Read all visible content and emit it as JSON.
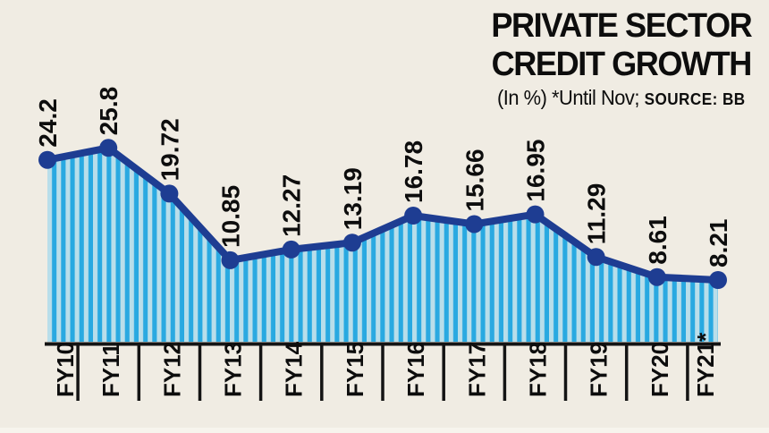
{
  "header": {
    "title_line1": "PRIVATE SECTOR",
    "title_line2": "CREDIT GROWTH",
    "subtitle_note": "(In %) *Until Nov;",
    "subtitle_source": "SOURCE: BB"
  },
  "colors": {
    "background": "#F0ECE3",
    "stripe_bright": "#29A9E1",
    "stripe_pale": "#B9DEEA",
    "line": "#1E3D92",
    "marker": "#1E3D92",
    "axis": "#141414",
    "text": "#0D0D0D",
    "bottom_edge_strip": "#F7F4ED"
  },
  "chart_data": {
    "type": "area",
    "title": "PRIVATE SECTOR CREDIT GROWTH",
    "unit_label": "In %",
    "note": "*Until Nov",
    "source": "BB",
    "categories": [
      "FY10",
      "FY11",
      "FY12",
      "FY13",
      "FY14",
      "FY15",
      "FY16",
      "FY17",
      "FY18",
      "FY19",
      "FY20",
      "FY21*"
    ],
    "values": [
      24.2,
      25.8,
      19.72,
      10.85,
      12.27,
      13.19,
      16.78,
      15.66,
      16.95,
      11.29,
      8.61,
      8.21
    ],
    "value_labels": [
      "24.2",
      "25.8",
      "19.72",
      "10.85",
      "12.27",
      "13.19",
      "16.78",
      "15.66",
      "16.95",
      "11.29",
      "8.61",
      "8.21"
    ],
    "ylim": [
      0,
      27
    ],
    "grid": false,
    "legend": "none",
    "marker": "circle",
    "fill_style": "vertical-stripes",
    "label_rotation_deg": -90
  }
}
